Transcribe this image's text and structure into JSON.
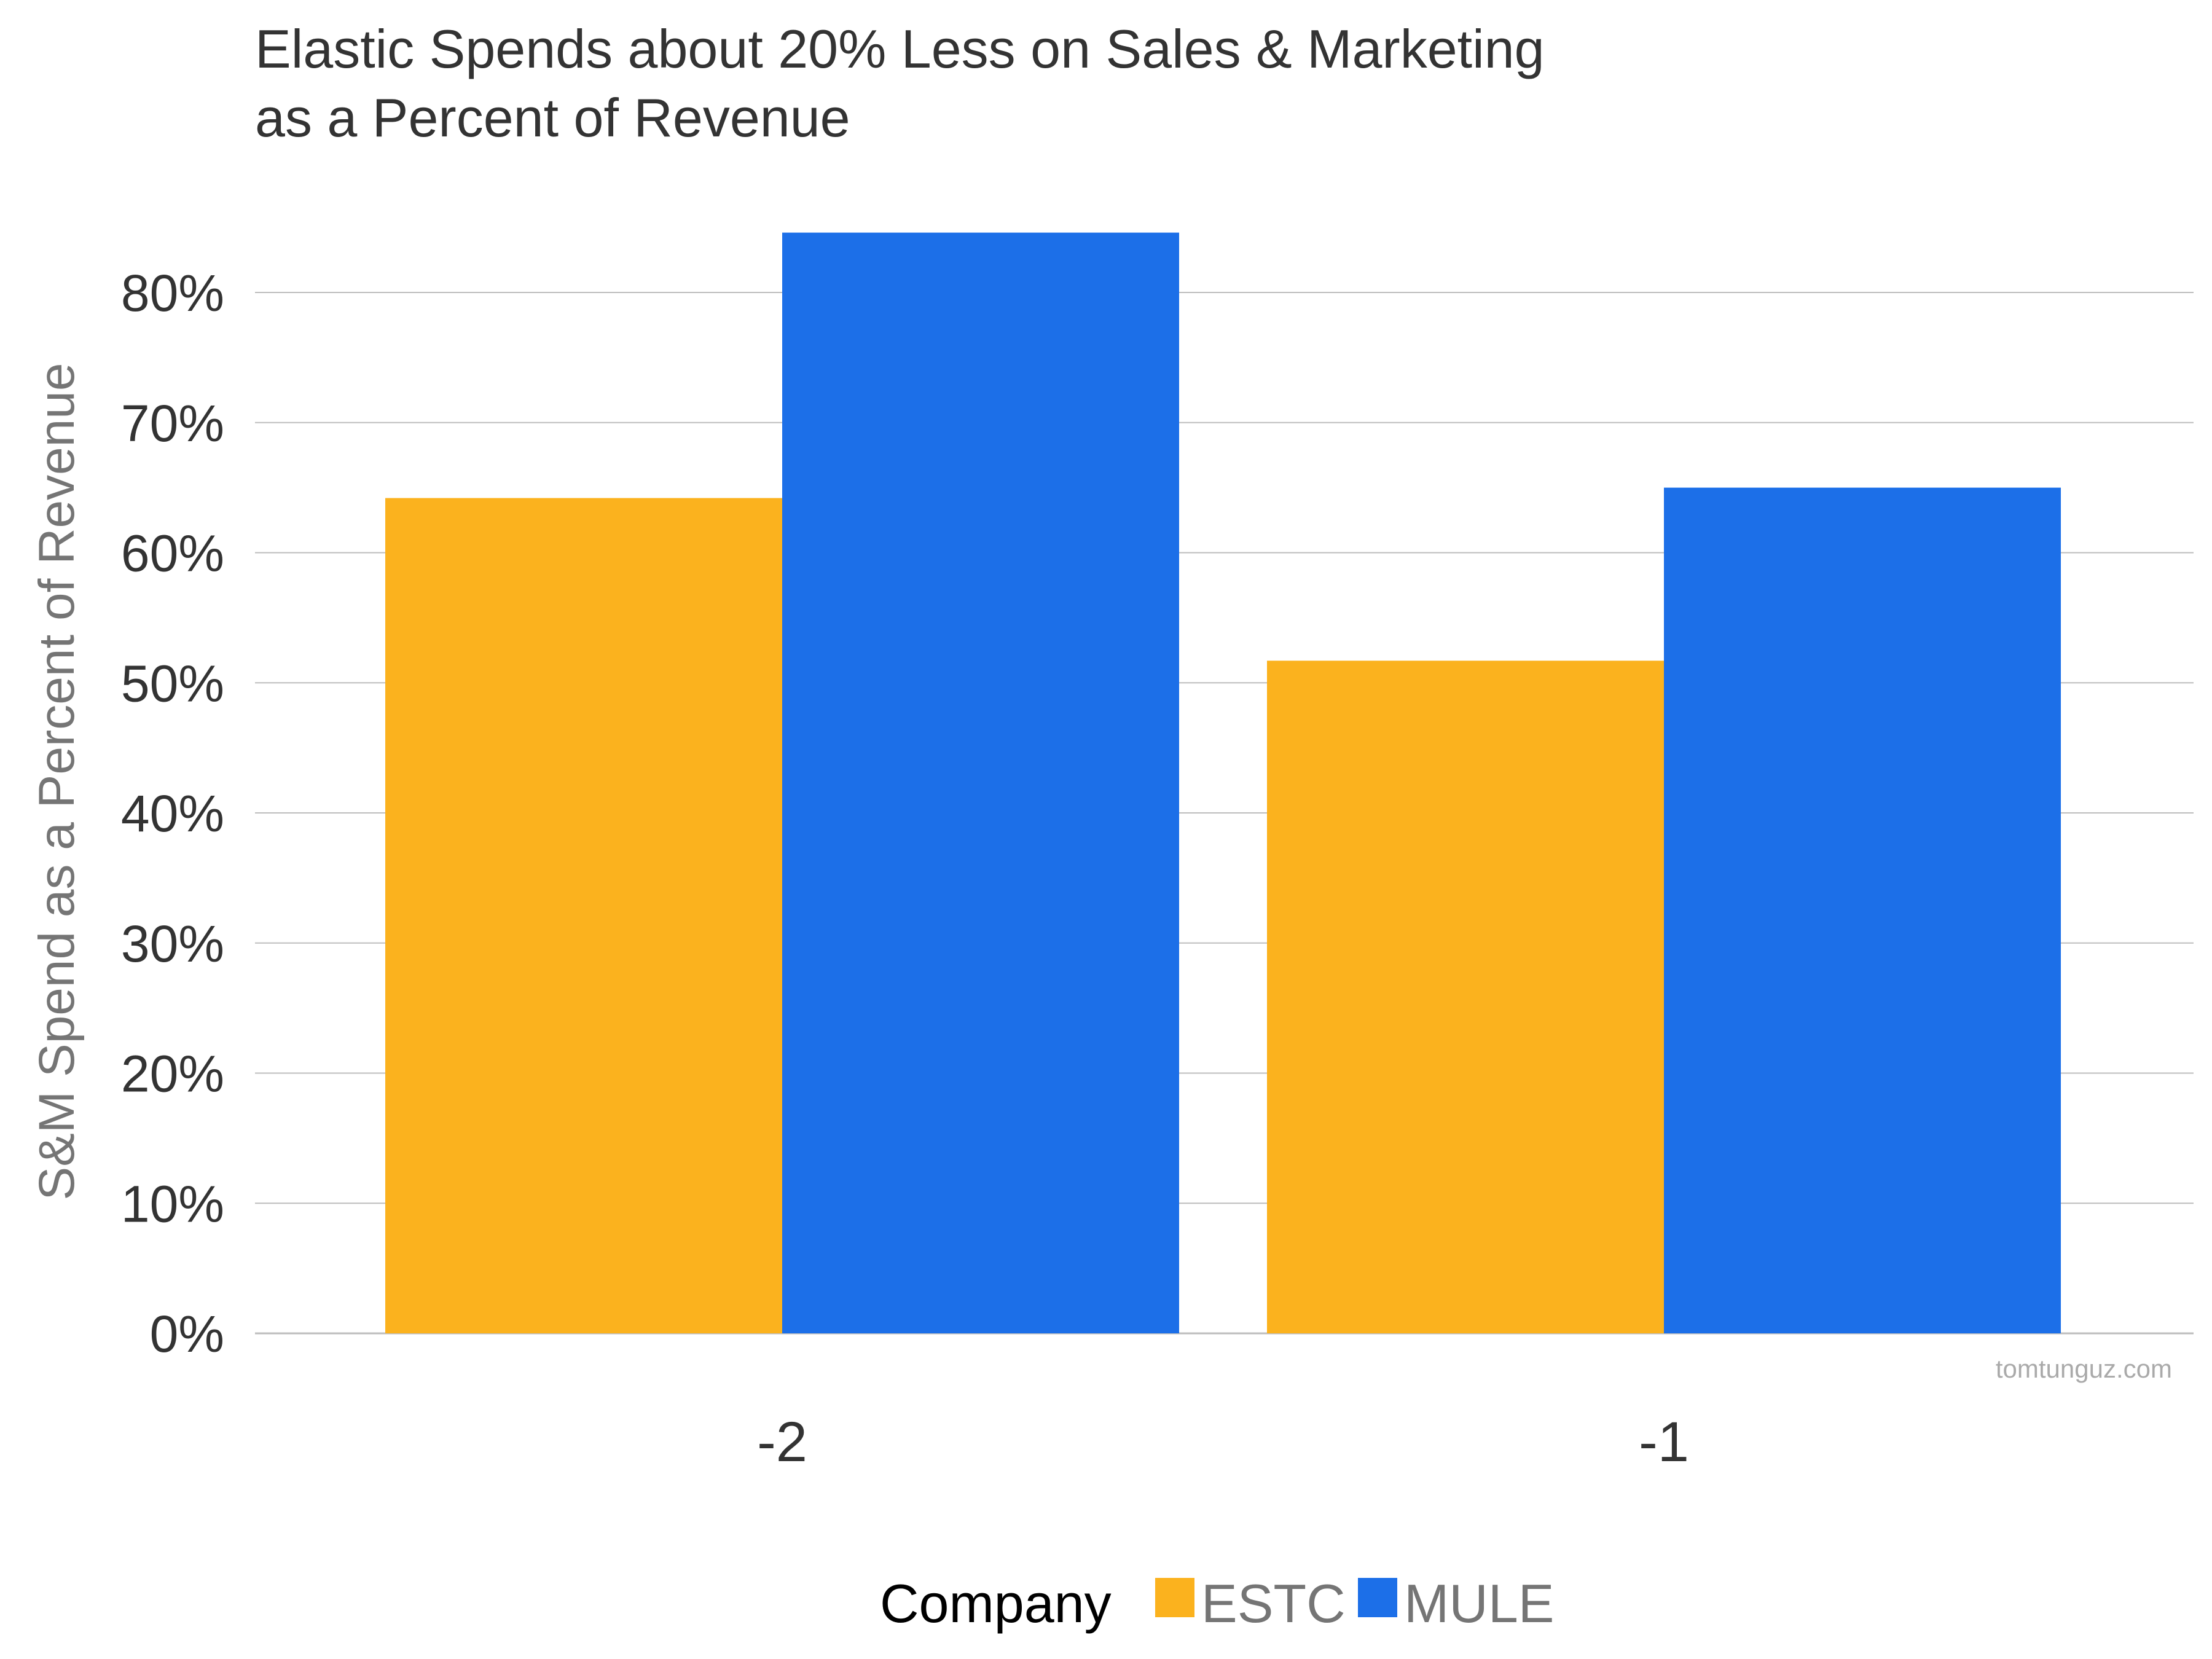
{
  "chart_data": {
    "type": "bar",
    "title_lines": [
      "Elastic Spends about 20% Less on Sales & Marketing",
      "as a Percent of Revenue"
    ],
    "ylabel": "S&M Spend as a Percent of Revenue",
    "xlabel": "",
    "categories": [
      "-2",
      "-1"
    ],
    "series": [
      {
        "name": "ESTC",
        "values": [
          64.2,
          51.7
        ],
        "color": "#FBB21E"
      },
      {
        "name": "MULE",
        "values": [
          84.6,
          65.0
        ],
        "color": "#1C6FE8"
      }
    ],
    "ylim": [
      0,
      80
    ],
    "yticks": [
      0,
      10,
      20,
      30,
      40,
      50,
      60,
      70,
      80
    ],
    "ytick_labels": [
      "0%",
      "10%",
      "20%",
      "30%",
      "40%",
      "50%",
      "60%",
      "70%",
      "80%"
    ],
    "grid": true,
    "legend": {
      "title": "Company",
      "placement": "bottom-center"
    },
    "watermark": "tomtunguz.com"
  },
  "colors": {
    "text_dark": "#333333",
    "text_muted": "#757575",
    "gridline": "#BDBDBD",
    "watermark": "#AAAAAA"
  }
}
